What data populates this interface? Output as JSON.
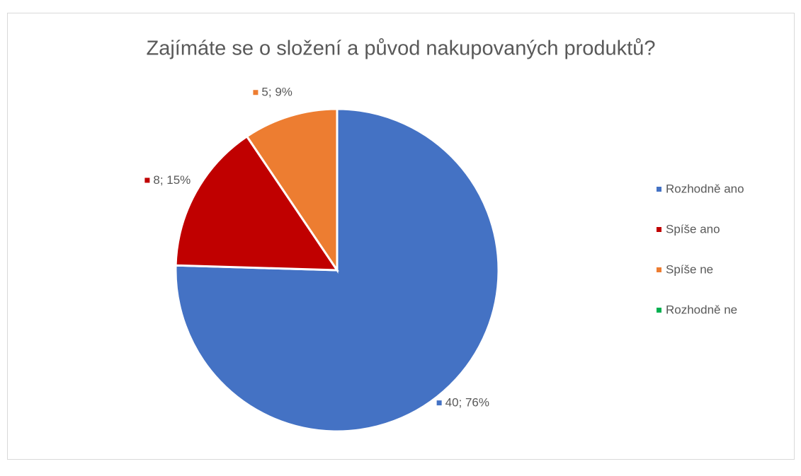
{
  "chart_data": {
    "type": "pie",
    "title": "Zajímáte se o složení a původ nakupovaných produktů?",
    "categories": [
      "Rozhodně ano",
      "Spíše ano",
      "Spíše ne",
      "Rozhodně ne"
    ],
    "values": [
      40,
      8,
      5,
      0
    ],
    "value_labels": [
      "40; 76%",
      "8; 15%",
      "5; 9%",
      null
    ],
    "colors": [
      "#4472c4",
      "#c00000",
      "#ed7d31",
      "#00b050"
    ],
    "legend": "right"
  }
}
